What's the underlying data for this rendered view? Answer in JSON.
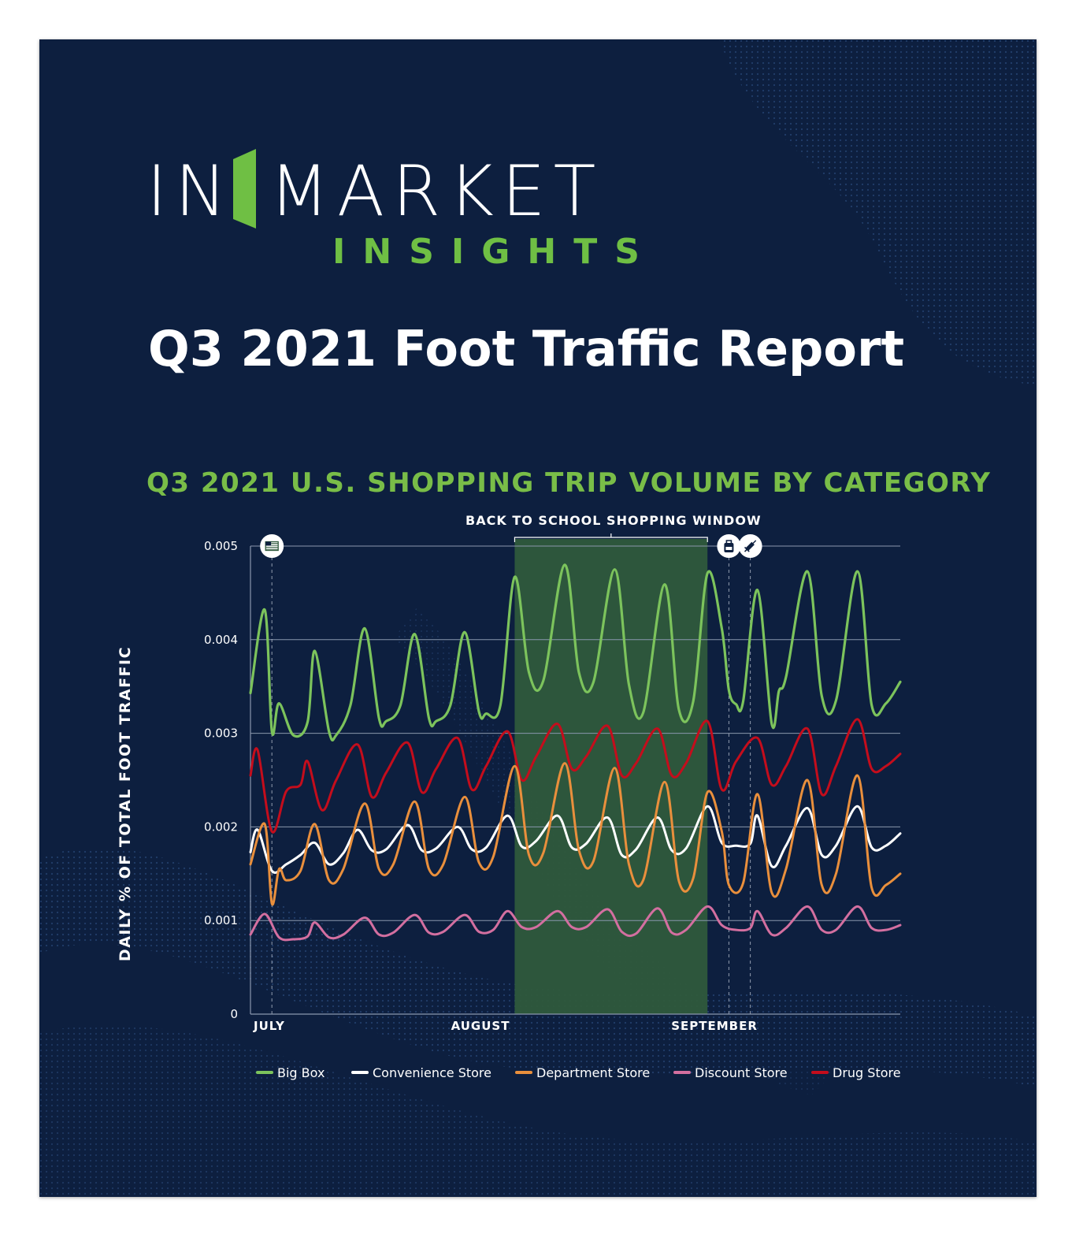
{
  "brand": {
    "logo_in": "IN",
    "logo_market": "MARKET",
    "logo_insights": "INSIGHTS",
    "logo_bar_color": "#6fbf44"
  },
  "report_title": "Q3 2021 Foot Traffic Report",
  "colors": {
    "background": "#0d1f3f",
    "accent_green": "#79bd48",
    "window_fill": "#2f5a3c",
    "gridline": "#8a97ad"
  },
  "event_icons": [
    "us-flag-icon",
    "school-backpack-icon",
    "vaccine-syringe-icon"
  ],
  "chart_data": {
    "type": "line",
    "title": "Q3 2021 U.S. SHOPPING TRIP VOLUME BY CATEGORY",
    "ylabel": "DAILY % OF TOTAL FOOT TRAFFIC",
    "xlabel": "",
    "ylim": [
      0,
      0.005
    ],
    "y_ticks": [
      "0",
      "0.001",
      "0.002",
      "0.003",
      "0.004",
      "0.005"
    ],
    "x_ticks": [
      {
        "label": "JULY",
        "date": "2021-07-01"
      },
      {
        "label": "AUGUST",
        "date": "2021-08-01"
      },
      {
        "label": "SEPTEMBER",
        "date": "2021-09-01"
      }
    ],
    "xlim": [
      "2021-07-01",
      "2021-09-30"
    ],
    "grid": true,
    "legend_position": "bottom",
    "shaded_region": {
      "label": "BACK TO SCHOOL SHOPPING WINDOW",
      "start": "2021-08-07",
      "end": "2021-09-03"
    },
    "event_markers": [
      {
        "date": "2021-07-04",
        "icon": "us-flag-icon"
      },
      {
        "date": "2021-09-06",
        "icon": "school-backpack-icon"
      },
      {
        "date": "2021-09-09",
        "icon": "vaccine-syringe-icon"
      }
    ],
    "series": [
      {
        "name": "Big Box",
        "color": "#7cc35c",
        "width": 3.2,
        "keypoints": [
          [
            "2021-07-01",
            0.00343
          ],
          [
            "2021-07-03",
            0.00432
          ],
          [
            "2021-07-04",
            0.00302
          ],
          [
            "2021-07-05",
            0.00332
          ],
          [
            "2021-07-07",
            0.00298
          ],
          [
            "2021-07-09",
            0.00312
          ],
          [
            "2021-07-10",
            0.00388
          ],
          [
            "2021-07-12",
            0.00302
          ],
          [
            "2021-07-13",
            0.00298
          ],
          [
            "2021-07-15",
            0.0033
          ],
          [
            "2021-07-17",
            0.00412
          ],
          [
            "2021-07-19",
            0.00316
          ],
          [
            "2021-07-20",
            0.00313
          ],
          [
            "2021-07-22",
            0.0033
          ],
          [
            "2021-07-24",
            0.00406
          ],
          [
            "2021-07-26",
            0.00316
          ],
          [
            "2021-07-27",
            0.00313
          ],
          [
            "2021-07-29",
            0.0033
          ],
          [
            "2021-07-31",
            0.00408
          ],
          [
            "2021-08-02",
            0.00323
          ],
          [
            "2021-08-03",
            0.00321
          ],
          [
            "2021-08-05",
            0.0033
          ],
          [
            "2021-08-07",
            0.00467
          ],
          [
            "2021-08-09",
            0.00365
          ],
          [
            "2021-08-11",
            0.00356
          ],
          [
            "2021-08-14",
            0.0048
          ],
          [
            "2021-08-16",
            0.00365
          ],
          [
            "2021-08-18",
            0.00354
          ],
          [
            "2021-08-21",
            0.00475
          ],
          [
            "2021-08-23",
            0.00352
          ],
          [
            "2021-08-25",
            0.00322
          ],
          [
            "2021-08-28",
            0.00459
          ],
          [
            "2021-08-30",
            0.00325
          ],
          [
            "2021-09-01",
            0.00334
          ],
          [
            "2021-09-03",
            0.00471
          ],
          [
            "2021-09-05",
            0.00412
          ],
          [
            "2021-09-06",
            0.00346
          ],
          [
            "2021-09-07",
            0.00331
          ],
          [
            "2021-09-08",
            0.00334
          ],
          [
            "2021-09-10",
            0.00453
          ],
          [
            "2021-09-12",
            0.0031
          ],
          [
            "2021-09-13",
            0.00345
          ],
          [
            "2021-09-14",
            0.0036
          ],
          [
            "2021-09-17",
            0.00473
          ],
          [
            "2021-09-19",
            0.0034
          ],
          [
            "2021-09-21",
            0.00335
          ],
          [
            "2021-09-24",
            0.00473
          ],
          [
            "2021-09-26",
            0.0033
          ],
          [
            "2021-09-28",
            0.00332
          ],
          [
            "2021-09-30",
            0.00355
          ]
        ]
      },
      {
        "name": "Convenience Store",
        "color": "#ffffff",
        "width": 3.0,
        "keypoints": [
          [
            "2021-07-01",
            0.00173
          ],
          [
            "2021-07-02",
            0.00197
          ],
          [
            "2021-07-04",
            0.00153
          ],
          [
            "2021-07-06",
            0.0016
          ],
          [
            "2021-07-08",
            0.0017
          ],
          [
            "2021-07-10",
            0.00183
          ],
          [
            "2021-07-12",
            0.0016
          ],
          [
            "2021-07-14",
            0.00172
          ],
          [
            "2021-07-16",
            0.00197
          ],
          [
            "2021-07-18",
            0.00175
          ],
          [
            "2021-07-20",
            0.00176
          ],
          [
            "2021-07-23",
            0.00202
          ],
          [
            "2021-07-25",
            0.00175
          ],
          [
            "2021-07-27",
            0.00177
          ],
          [
            "2021-07-30",
            0.002
          ],
          [
            "2021-08-01",
            0.00176
          ],
          [
            "2021-08-03",
            0.00178
          ],
          [
            "2021-08-06",
            0.00212
          ],
          [
            "2021-08-08",
            0.00179
          ],
          [
            "2021-08-10",
            0.00185
          ],
          [
            "2021-08-13",
            0.00212
          ],
          [
            "2021-08-15",
            0.00178
          ],
          [
            "2021-08-17",
            0.00182
          ],
          [
            "2021-08-20",
            0.0021
          ],
          [
            "2021-08-22",
            0.0017
          ],
          [
            "2021-08-24",
            0.00176
          ],
          [
            "2021-08-27",
            0.0021
          ],
          [
            "2021-08-29",
            0.00175
          ],
          [
            "2021-08-31",
            0.00177
          ],
          [
            "2021-09-03",
            0.00222
          ],
          [
            "2021-09-05",
            0.00183
          ],
          [
            "2021-09-07",
            0.0018
          ],
          [
            "2021-09-09",
            0.00182
          ],
          [
            "2021-09-10",
            0.00212
          ],
          [
            "2021-09-12",
            0.00158
          ],
          [
            "2021-09-14",
            0.0018
          ],
          [
            "2021-09-17",
            0.0022
          ],
          [
            "2021-09-19",
            0.0017
          ],
          [
            "2021-09-21",
            0.0018
          ],
          [
            "2021-09-24",
            0.00222
          ],
          [
            "2021-09-26",
            0.00178
          ],
          [
            "2021-09-28",
            0.0018
          ],
          [
            "2021-09-30",
            0.00193
          ]
        ]
      },
      {
        "name": "Department Store",
        "color": "#e98f3c",
        "width": 3.0,
        "keypoints": [
          [
            "2021-07-01",
            0.0016
          ],
          [
            "2021-07-03",
            0.00203
          ],
          [
            "2021-07-04",
            0.00118
          ],
          [
            "2021-07-05",
            0.00155
          ],
          [
            "2021-07-06",
            0.00143
          ],
          [
            "2021-07-08",
            0.00153
          ],
          [
            "2021-07-10",
            0.00203
          ],
          [
            "2021-07-12",
            0.00143
          ],
          [
            "2021-07-14",
            0.00155
          ],
          [
            "2021-07-17",
            0.00225
          ],
          [
            "2021-07-19",
            0.00155
          ],
          [
            "2021-07-21",
            0.0016
          ],
          [
            "2021-07-24",
            0.00227
          ],
          [
            "2021-07-26",
            0.00155
          ],
          [
            "2021-07-28",
            0.0016
          ],
          [
            "2021-07-31",
            0.00232
          ],
          [
            "2021-08-02",
            0.00162
          ],
          [
            "2021-08-04",
            0.00168
          ],
          [
            "2021-08-07",
            0.00265
          ],
          [
            "2021-08-09",
            0.0017
          ],
          [
            "2021-08-11",
            0.00172
          ],
          [
            "2021-08-14",
            0.00268
          ],
          [
            "2021-08-16",
            0.00175
          ],
          [
            "2021-08-18",
            0.00163
          ],
          [
            "2021-08-21",
            0.00263
          ],
          [
            "2021-08-23",
            0.0016
          ],
          [
            "2021-08-25",
            0.00143
          ],
          [
            "2021-08-28",
            0.00248
          ],
          [
            "2021-08-30",
            0.00142
          ],
          [
            "2021-09-01",
            0.00145
          ],
          [
            "2021-09-03",
            0.00237
          ],
          [
            "2021-09-05",
            0.00195
          ],
          [
            "2021-09-06",
            0.00138
          ],
          [
            "2021-09-08",
            0.0014
          ],
          [
            "2021-09-10",
            0.00235
          ],
          [
            "2021-09-12",
            0.0013
          ],
          [
            "2021-09-14",
            0.00155
          ],
          [
            "2021-09-17",
            0.0025
          ],
          [
            "2021-09-19",
            0.00138
          ],
          [
            "2021-09-21",
            0.0015
          ],
          [
            "2021-09-24",
            0.00255
          ],
          [
            "2021-09-26",
            0.00135
          ],
          [
            "2021-09-28",
            0.00138
          ],
          [
            "2021-09-30",
            0.0015
          ]
        ]
      },
      {
        "name": "Discount Store",
        "color": "#d36fa0",
        "width": 3.0,
        "keypoints": [
          [
            "2021-07-01",
            0.00085
          ],
          [
            "2021-07-03",
            0.00107
          ],
          [
            "2021-07-05",
            0.00082
          ],
          [
            "2021-07-07",
            0.0008
          ],
          [
            "2021-07-09",
            0.00083
          ],
          [
            "2021-07-10",
            0.00098
          ],
          [
            "2021-07-12",
            0.00082
          ],
          [
            "2021-07-14",
            0.00085
          ],
          [
            "2021-07-17",
            0.00103
          ],
          [
            "2021-07-19",
            0.00085
          ],
          [
            "2021-07-21",
            0.00087
          ],
          [
            "2021-07-24",
            0.00106
          ],
          [
            "2021-07-26",
            0.00087
          ],
          [
            "2021-07-28",
            0.00088
          ],
          [
            "2021-07-31",
            0.00106
          ],
          [
            "2021-08-02",
            0.00088
          ],
          [
            "2021-08-04",
            0.0009
          ],
          [
            "2021-08-06",
            0.0011
          ],
          [
            "2021-08-08",
            0.00093
          ],
          [
            "2021-08-10",
            0.00093
          ],
          [
            "2021-08-13",
            0.0011
          ],
          [
            "2021-08-15",
            0.00093
          ],
          [
            "2021-08-17",
            0.00093
          ],
          [
            "2021-08-20",
            0.00112
          ],
          [
            "2021-08-22",
            0.00088
          ],
          [
            "2021-08-24",
            0.00086
          ],
          [
            "2021-08-27",
            0.00113
          ],
          [
            "2021-08-29",
            0.00087
          ],
          [
            "2021-08-31",
            0.0009
          ],
          [
            "2021-09-03",
            0.00115
          ],
          [
            "2021-09-05",
            0.00095
          ],
          [
            "2021-09-07",
            0.0009
          ],
          [
            "2021-09-09",
            0.00092
          ],
          [
            "2021-09-10",
            0.0011
          ],
          [
            "2021-09-12",
            0.00085
          ],
          [
            "2021-09-14",
            0.00092
          ],
          [
            "2021-09-17",
            0.00115
          ],
          [
            "2021-09-19",
            0.0009
          ],
          [
            "2021-09-21",
            0.0009
          ],
          [
            "2021-09-24",
            0.00115
          ],
          [
            "2021-09-26",
            0.00092
          ],
          [
            "2021-09-28",
            0.0009
          ],
          [
            "2021-09-30",
            0.00095
          ]
        ]
      },
      {
        "name": "Drug Store",
        "color": "#c40d1c",
        "width": 3.0,
        "keypoints": [
          [
            "2021-07-01",
            0.00255
          ],
          [
            "2021-07-02",
            0.00282
          ],
          [
            "2021-07-04",
            0.00195
          ],
          [
            "2021-07-06",
            0.00238
          ],
          [
            "2021-07-08",
            0.00245
          ],
          [
            "2021-07-09",
            0.0027
          ],
          [
            "2021-07-11",
            0.00218
          ],
          [
            "2021-07-13",
            0.0025
          ],
          [
            "2021-07-16",
            0.00288
          ],
          [
            "2021-07-18",
            0.00232
          ],
          [
            "2021-07-20",
            0.00258
          ],
          [
            "2021-07-23",
            0.0029
          ],
          [
            "2021-07-25",
            0.00237
          ],
          [
            "2021-07-27",
            0.00262
          ],
          [
            "2021-07-30",
            0.00295
          ],
          [
            "2021-08-01",
            0.0024
          ],
          [
            "2021-08-03",
            0.00265
          ],
          [
            "2021-08-06",
            0.00302
          ],
          [
            "2021-08-08",
            0.0025
          ],
          [
            "2021-08-10",
            0.00275
          ],
          [
            "2021-08-13",
            0.0031
          ],
          [
            "2021-08-15",
            0.00262
          ],
          [
            "2021-08-17",
            0.00275
          ],
          [
            "2021-08-20",
            0.00308
          ],
          [
            "2021-08-22",
            0.00255
          ],
          [
            "2021-08-24",
            0.00268
          ],
          [
            "2021-08-27",
            0.00305
          ],
          [
            "2021-08-29",
            0.00255
          ],
          [
            "2021-08-31",
            0.00268
          ],
          [
            "2021-09-03",
            0.00313
          ],
          [
            "2021-09-05",
            0.0024
          ],
          [
            "2021-09-07",
            0.0027
          ],
          [
            "2021-09-10",
            0.00295
          ],
          [
            "2021-09-12",
            0.00245
          ],
          [
            "2021-09-14",
            0.00265
          ],
          [
            "2021-09-17",
            0.00305
          ],
          [
            "2021-09-19",
            0.00235
          ],
          [
            "2021-09-21",
            0.00265
          ],
          [
            "2021-09-24",
            0.00315
          ],
          [
            "2021-09-26",
            0.00262
          ],
          [
            "2021-09-28",
            0.00265
          ],
          [
            "2021-09-30",
            0.00278
          ]
        ]
      }
    ]
  }
}
